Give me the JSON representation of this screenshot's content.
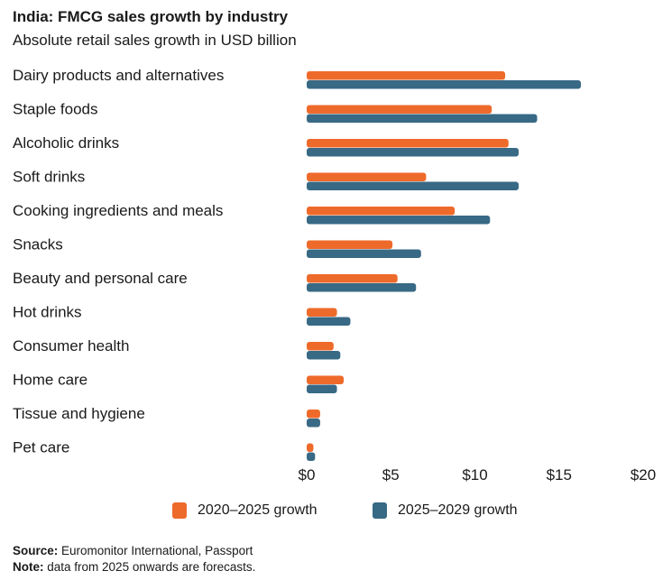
{
  "chart_data": {
    "type": "bar",
    "orientation": "horizontal",
    "title": "India: FMCG sales growth by industry",
    "subtitle": "Absolute retail sales growth in USD billion",
    "categories": [
      "Dairy products and alternatives",
      "Staple foods",
      "Alcoholic drinks",
      "Soft drinks",
      "Cooking ingredients and meals",
      "Snacks",
      "Beauty and personal care",
      "Hot drinks",
      "Consumer health",
      "Home care",
      "Tissue and hygiene",
      "Pet care"
    ],
    "series": [
      {
        "name": "2020–2025 growth",
        "color": "#EE6A2B",
        "values": [
          11.8,
          11.0,
          12.0,
          7.1,
          8.8,
          5.1,
          5.4,
          1.8,
          1.6,
          2.2,
          0.8,
          0.4
        ]
      },
      {
        "name": "2025–2029 growth",
        "color": "#386985",
        "values": [
          16.3,
          13.7,
          12.6,
          12.6,
          10.9,
          6.8,
          6.5,
          2.6,
          2.0,
          1.8,
          0.8,
          0.5
        ]
      }
    ],
    "xlim": [
      0,
      20
    ],
    "xticks": [
      0,
      5,
      10,
      15,
      20
    ],
    "xtick_labels": [
      "$0",
      "$5",
      "$10",
      "$15",
      "$20"
    ],
    "xlabel": "",
    "ylabel": "",
    "grid": false,
    "legend": "bottom"
  },
  "footer": {
    "source_label": "Source:",
    "source_text": "Euromonitor International, Passport",
    "note_label": "Note:",
    "note_text": "data from 2025 onwards are forecasts."
  }
}
